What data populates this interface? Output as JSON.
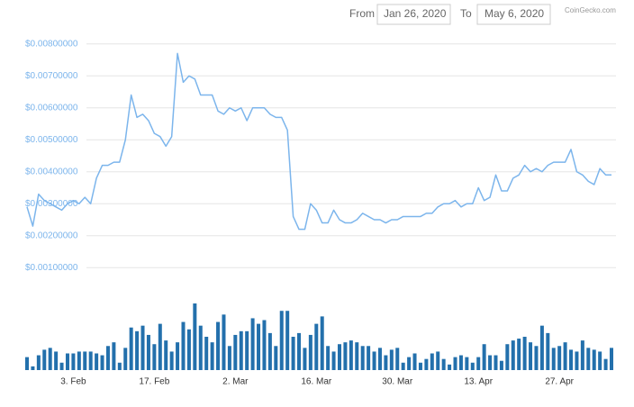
{
  "controls": {
    "from_label": "From",
    "from_value": "Jan 26, 2020",
    "to_label": "To",
    "to_value": "May 6, 2020",
    "brand": "CoinGecko.com"
  },
  "chart_data": [
    {
      "type": "line",
      "color": "#7cb5ec",
      "grid": true,
      "ylim": [
        0.0005,
        0.0085
      ],
      "yticks": [
        {
          "value": 0.001,
          "label": "$0.00100000"
        },
        {
          "value": 0.002,
          "label": "$0.00200000"
        },
        {
          "value": 0.003,
          "label": "$0.00300000"
        },
        {
          "value": 0.004,
          "label": "$0.00400000"
        },
        {
          "value": 0.005,
          "label": "$0.00500000"
        },
        {
          "value": 0.006,
          "label": "$0.00600000"
        },
        {
          "value": 0.007,
          "label": "$0.00700000"
        },
        {
          "value": 0.008,
          "label": "$0.00800000"
        }
      ],
      "values": [
        0.0029,
        0.0023,
        0.0033,
        0.0031,
        0.003,
        0.0029,
        0.0028,
        0.003,
        0.0031,
        0.003,
        0.0032,
        0.003,
        0.0038,
        0.0042,
        0.0042,
        0.0043,
        0.0043,
        0.005,
        0.0064,
        0.0057,
        0.0058,
        0.0056,
        0.0052,
        0.0051,
        0.0048,
        0.0051,
        0.0077,
        0.0068,
        0.007,
        0.0069,
        0.0064,
        0.0064,
        0.0064,
        0.0059,
        0.0058,
        0.006,
        0.0059,
        0.006,
        0.0056,
        0.006,
        0.006,
        0.006,
        0.0058,
        0.0057,
        0.0057,
        0.0053,
        0.0026,
        0.0022,
        0.0022,
        0.003,
        0.0028,
        0.0024,
        0.0024,
        0.0028,
        0.0025,
        0.0024,
        0.0024,
        0.0025,
        0.0027,
        0.0026,
        0.0025,
        0.0025,
        0.0024,
        0.0025,
        0.0025,
        0.0026,
        0.0026,
        0.0026,
        0.0026,
        0.0027,
        0.0027,
        0.0029,
        0.003,
        0.003,
        0.0031,
        0.0029,
        0.003,
        0.003,
        0.0035,
        0.0031,
        0.0032,
        0.0039,
        0.0034,
        0.0034,
        0.0038,
        0.0039,
        0.0042,
        0.004,
        0.0041,
        0.004,
        0.0042,
        0.0043,
        0.0043,
        0.0043,
        0.0047,
        0.004,
        0.0039,
        0.0037,
        0.0036,
        0.0041,
        0.0039,
        0.0039
      ]
    },
    {
      "type": "bar",
      "color": "#2370ac",
      "categories": [
        null,
        null,
        null,
        null,
        null,
        null,
        null,
        null,
        "3. Feb",
        null,
        null,
        null,
        null,
        null,
        null,
        null,
        null,
        null,
        null,
        null,
        null,
        null,
        "17. Feb",
        null,
        null,
        null,
        null,
        null,
        null,
        null,
        null,
        null,
        null,
        null,
        null,
        null,
        "2. Mar",
        null,
        null,
        null,
        null,
        null,
        null,
        null,
        null,
        null,
        null,
        null,
        null,
        null,
        "16. Mar",
        null,
        null,
        null,
        null,
        null,
        null,
        null,
        null,
        null,
        null,
        null,
        null,
        null,
        "30. Mar",
        null,
        null,
        null,
        null,
        null,
        null,
        null,
        null,
        null,
        null,
        null,
        null,
        null,
        "13. Apr",
        null,
        null,
        null,
        null,
        null,
        null,
        null,
        null,
        null,
        null,
        null,
        null,
        null,
        "27. Apr",
        null,
        null,
        null,
        null,
        null,
        null,
        null,
        null,
        null
      ],
      "values": [
        14,
        4,
        16,
        22,
        24,
        20,
        8,
        18,
        18,
        20,
        20,
        20,
        18,
        16,
        26,
        30,
        8,
        24,
        46,
        42,
        48,
        38,
        28,
        50,
        32,
        20,
        30,
        52,
        44,
        72,
        48,
        36,
        30,
        52,
        60,
        26,
        38,
        42,
        42,
        56,
        50,
        54,
        40,
        26,
        64,
        64,
        36,
        40,
        24,
        38,
        50,
        58,
        26,
        20,
        28,
        30,
        32,
        30,
        26,
        26,
        20,
        24,
        16,
        22,
        24,
        8,
        14,
        18,
        8,
        12,
        18,
        20,
        12,
        6,
        14,
        16,
        14,
        8,
        14,
        28,
        16,
        16,
        10,
        28,
        32,
        34,
        36,
        30,
        26,
        48,
        40,
        24,
        26,
        30,
        22,
        20,
        32,
        24,
        22,
        20,
        12,
        24
      ]
    }
  ]
}
